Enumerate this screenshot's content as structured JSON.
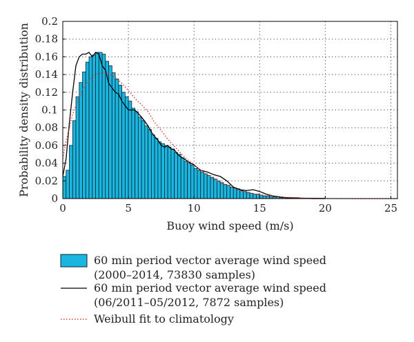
{
  "chart_data": {
    "type": "bar",
    "title": "",
    "xlabel": "Buoy wind speed (m/s)",
    "ylabel": "Probability density distribution",
    "xlim": [
      0,
      25.5
    ],
    "ylim": [
      0,
      0.2
    ],
    "xticks": [
      0,
      5,
      10,
      15,
      20,
      25
    ],
    "yticks": [
      0,
      0.02,
      0.04,
      0.06,
      0.08,
      0.1,
      0.12,
      0.14,
      0.16,
      0.18,
      0.2
    ],
    "ytick_labels": [
      "0",
      "0.02",
      "0.04",
      "0.06",
      "0.08",
      "0.1",
      "0.12",
      "0.14",
      "0.16",
      "0.18",
      "0.2"
    ],
    "grid": true,
    "bar_color": "#1ab6e0",
    "bin_width": 0.25,
    "series": [
      {
        "name": "60 min period vector average wind speed (2000–2014, 73830 samples)",
        "kind": "histogram",
        "x": [
          0.125,
          0.375,
          0.625,
          0.875,
          1.125,
          1.375,
          1.625,
          1.875,
          2.125,
          2.375,
          2.625,
          2.875,
          3.125,
          3.375,
          3.625,
          3.875,
          4.125,
          4.375,
          4.625,
          4.875,
          5.125,
          5.375,
          5.625,
          5.875,
          6.125,
          6.375,
          6.625,
          6.875,
          7.125,
          7.375,
          7.625,
          7.875,
          8.125,
          8.375,
          8.625,
          8.875,
          9.125,
          9.375,
          9.625,
          9.875,
          10.125,
          10.375,
          10.625,
          10.875,
          11.125,
          11.375,
          11.625,
          11.875,
          12.125,
          12.375,
          12.625,
          12.875,
          13.125,
          13.375,
          13.625,
          13.875,
          14.125,
          14.375,
          14.625,
          14.875,
          15.125,
          15.375,
          15.625,
          15.875,
          16.125,
          16.375,
          16.625,
          16.875,
          17.125,
          17.375,
          17.625,
          17.875,
          18.125,
          18.375,
          18.625,
          18.875,
          19.125,
          19.375,
          19.625,
          19.875
        ],
        "values": [
          0.025,
          0.032,
          0.06,
          0.088,
          0.115,
          0.131,
          0.143,
          0.154,
          0.16,
          0.162,
          0.165,
          0.165,
          0.163,
          0.155,
          0.15,
          0.142,
          0.135,
          0.128,
          0.12,
          0.115,
          0.11,
          0.102,
          0.098,
          0.092,
          0.088,
          0.082,
          0.078,
          0.072,
          0.068,
          0.064,
          0.062,
          0.06,
          0.058,
          0.056,
          0.052,
          0.05,
          0.046,
          0.042,
          0.04,
          0.038,
          0.034,
          0.032,
          0.03,
          0.028,
          0.026,
          0.024,
          0.022,
          0.02,
          0.018,
          0.016,
          0.015,
          0.013,
          0.012,
          0.011,
          0.009,
          0.008,
          0.007,
          0.006,
          0.005,
          0.005,
          0.004,
          0.003,
          0.003,
          0.002,
          0.002,
          0.002,
          0.001,
          0.001,
          0.001,
          0.001,
          0.001,
          0.001,
          0.0005,
          0.0005,
          0.0005,
          0.0005,
          0.0005,
          0.0005,
          0.0005,
          0.0005
        ]
      },
      {
        "name": "60 min period vector average wind speed (06/2011–05/2012, 7872 samples)",
        "kind": "line",
        "color": "#000000",
        "x": [
          0,
          0.25,
          0.5,
          0.75,
          1,
          1.25,
          1.5,
          1.75,
          2,
          2.25,
          2.5,
          2.75,
          3,
          3.25,
          3.5,
          3.75,
          4,
          4.25,
          4.5,
          4.75,
          5,
          5.25,
          5.5,
          5.75,
          6,
          6.25,
          6.5,
          6.75,
          7,
          7.25,
          7.5,
          7.75,
          8,
          8.25,
          8.5,
          8.75,
          9,
          9.25,
          9.5,
          9.75,
          10,
          10.5,
          11,
          11.5,
          12,
          12.5,
          13,
          13.5,
          14,
          14.5,
          15,
          15.5,
          16,
          17,
          18,
          19,
          20
        ],
        "values": [
          0.025,
          0.045,
          0.085,
          0.12,
          0.15,
          0.16,
          0.163,
          0.163,
          0.165,
          0.16,
          0.165,
          0.163,
          0.15,
          0.145,
          0.13,
          0.125,
          0.12,
          0.118,
          0.11,
          0.105,
          0.1,
          0.1,
          0.1,
          0.096,
          0.092,
          0.087,
          0.082,
          0.075,
          0.07,
          0.066,
          0.06,
          0.058,
          0.06,
          0.056,
          0.055,
          0.05,
          0.047,
          0.045,
          0.042,
          0.04,
          0.038,
          0.032,
          0.03,
          0.027,
          0.025,
          0.02,
          0.013,
          0.01,
          0.009,
          0.01,
          0.008,
          0.005,
          0.003,
          0.001,
          0.0005,
          0,
          0
        ]
      },
      {
        "name": "Weibull fit to climatology",
        "kind": "dotted-line",
        "color": "#d9382e",
        "x": [
          0,
          0.25,
          0.5,
          0.75,
          1,
          1.5,
          2,
          2.5,
          3,
          3.5,
          4,
          4.5,
          5,
          5.5,
          6,
          6.5,
          7,
          7.5,
          8,
          8.5,
          9,
          9.5,
          10,
          10.5,
          11,
          11.5,
          12,
          12.5,
          13,
          13.5,
          14,
          15,
          16,
          17,
          18,
          19,
          20,
          21,
          22,
          23,
          24,
          25,
          25.5
        ],
        "values": [
          0.045,
          0.065,
          0.08,
          0.095,
          0.105,
          0.123,
          0.134,
          0.14,
          0.142,
          0.141,
          0.137,
          0.13,
          0.122,
          0.113,
          0.106,
          0.098,
          0.086,
          0.077,
          0.067,
          0.059,
          0.051,
          0.044,
          0.038,
          0.032,
          0.027,
          0.022,
          0.018,
          0.015,
          0.012,
          0.009,
          0.007,
          0.004,
          0.0025,
          0.0014,
          0.0008,
          0.0004,
          0.0002,
          0.0001,
          0,
          0,
          0,
          0,
          0
        ]
      }
    ],
    "legend": {
      "placement": "bottom",
      "entries": [
        {
          "line1": "60 min period vector average wind speed",
          "line2": "(2000–2014, 73830 samples)"
        },
        {
          "line1": "60 min period vector average wind speed",
          "line2": "(06/2011–05/2012, 7872 samples)"
        },
        {
          "line1": "Weibull fit to climatology",
          "line2": ""
        }
      ]
    }
  }
}
